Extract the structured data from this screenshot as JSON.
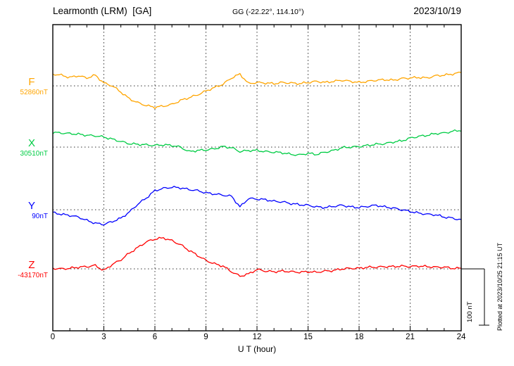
{
  "header": {
    "station": "Learmonth (LRM)  [GA]",
    "coords": "GG (-22.22°, 114.10°)",
    "date": "2023/10/19"
  },
  "axis": {
    "xlabel": "U T (hour)",
    "ticks": [
      "0",
      "3",
      "6",
      "9",
      "12",
      "15",
      "18",
      "21",
      "24"
    ]
  },
  "scale_bar": {
    "label": "100 nT",
    "nT": 100
  },
  "footer_note": "Plotted at 2023/10/25 21:15 UT",
  "chart_data": {
    "type": "line",
    "title": "Learmonth (LRM) [GA] magnetogram",
    "date": "2023/10/19",
    "xlabel": "U T (hour)",
    "xlim": [
      0,
      24
    ],
    "x_step_hours": 0.5,
    "grid": "dotted",
    "scale_reference_nT": 100,
    "series": [
      {
        "name": "F",
        "baseline_label": "52860nT",
        "baseline_nT": 52860,
        "color": "#ffa500",
        "offsets_nT": [
          21,
          19,
          15,
          18,
          14,
          19,
          5,
          0,
          -11,
          -23,
          -30,
          -35,
          -38,
          -36,
          -33,
          -26,
          -21,
          -16,
          -9,
          -3,
          3,
          14,
          21,
          4,
          6,
          5,
          4,
          6,
          5,
          4,
          6,
          8,
          6,
          8,
          10,
          8,
          6,
          8,
          10,
          11,
          10,
          13,
          14,
          15,
          14,
          18,
          19,
          21,
          24
        ]
      },
      {
        "name": "X",
        "baseline_label": "30510nT",
        "baseline_nT": 30510,
        "color": "#00cc44",
        "offsets_nT": [
          26,
          25,
          24,
          23,
          21,
          20,
          18,
          14,
          10,
          6,
          5,
          4,
          3,
          4,
          3,
          0,
          -8,
          -6,
          -5,
          -3,
          1,
          -1,
          -8,
          -6,
          -6,
          -8,
          -9,
          -10,
          -13,
          -14,
          -11,
          -13,
          -9,
          -6,
          -1,
          0,
          1,
          3,
          5,
          6,
          9,
          11,
          16,
          19,
          21,
          24,
          25,
          28,
          30
        ]
      },
      {
        "name": "Y",
        "baseline_label": "90nT",
        "baseline_nT": 90,
        "color": "#0000ff",
        "offsets_nT": [
          -5,
          -8,
          -10,
          -13,
          -19,
          -24,
          -26,
          -21,
          -15,
          -4,
          10,
          21,
          34,
          38,
          40,
          39,
          36,
          34,
          30,
          28,
          26,
          24,
          5,
          20,
          19,
          18,
          15,
          14,
          11,
          9,
          8,
          5,
          4,
          6,
          8,
          5,
          4,
          6,
          8,
          5,
          3,
          0,
          -3,
          -6,
          -8,
          -9,
          -13,
          -15,
          -18
        ]
      },
      {
        "name": "Z",
        "baseline_label": "-43170nT",
        "baseline_nT": -43170,
        "color": "#ff0000",
        "offsets_nT": [
          1,
          0,
          1,
          3,
          4,
          6,
          -3,
          8,
          16,
          28,
          38,
          48,
          53,
          55,
          50,
          43,
          33,
          24,
          15,
          9,
          5,
          -5,
          -13,
          -9,
          -1,
          -4,
          -5,
          -4,
          -5,
          -6,
          -5,
          -6,
          -4,
          -3,
          0,
          1,
          1,
          3,
          3,
          4,
          4,
          5,
          4,
          5,
          4,
          3,
          3,
          1,
          1
        ]
      }
    ]
  }
}
